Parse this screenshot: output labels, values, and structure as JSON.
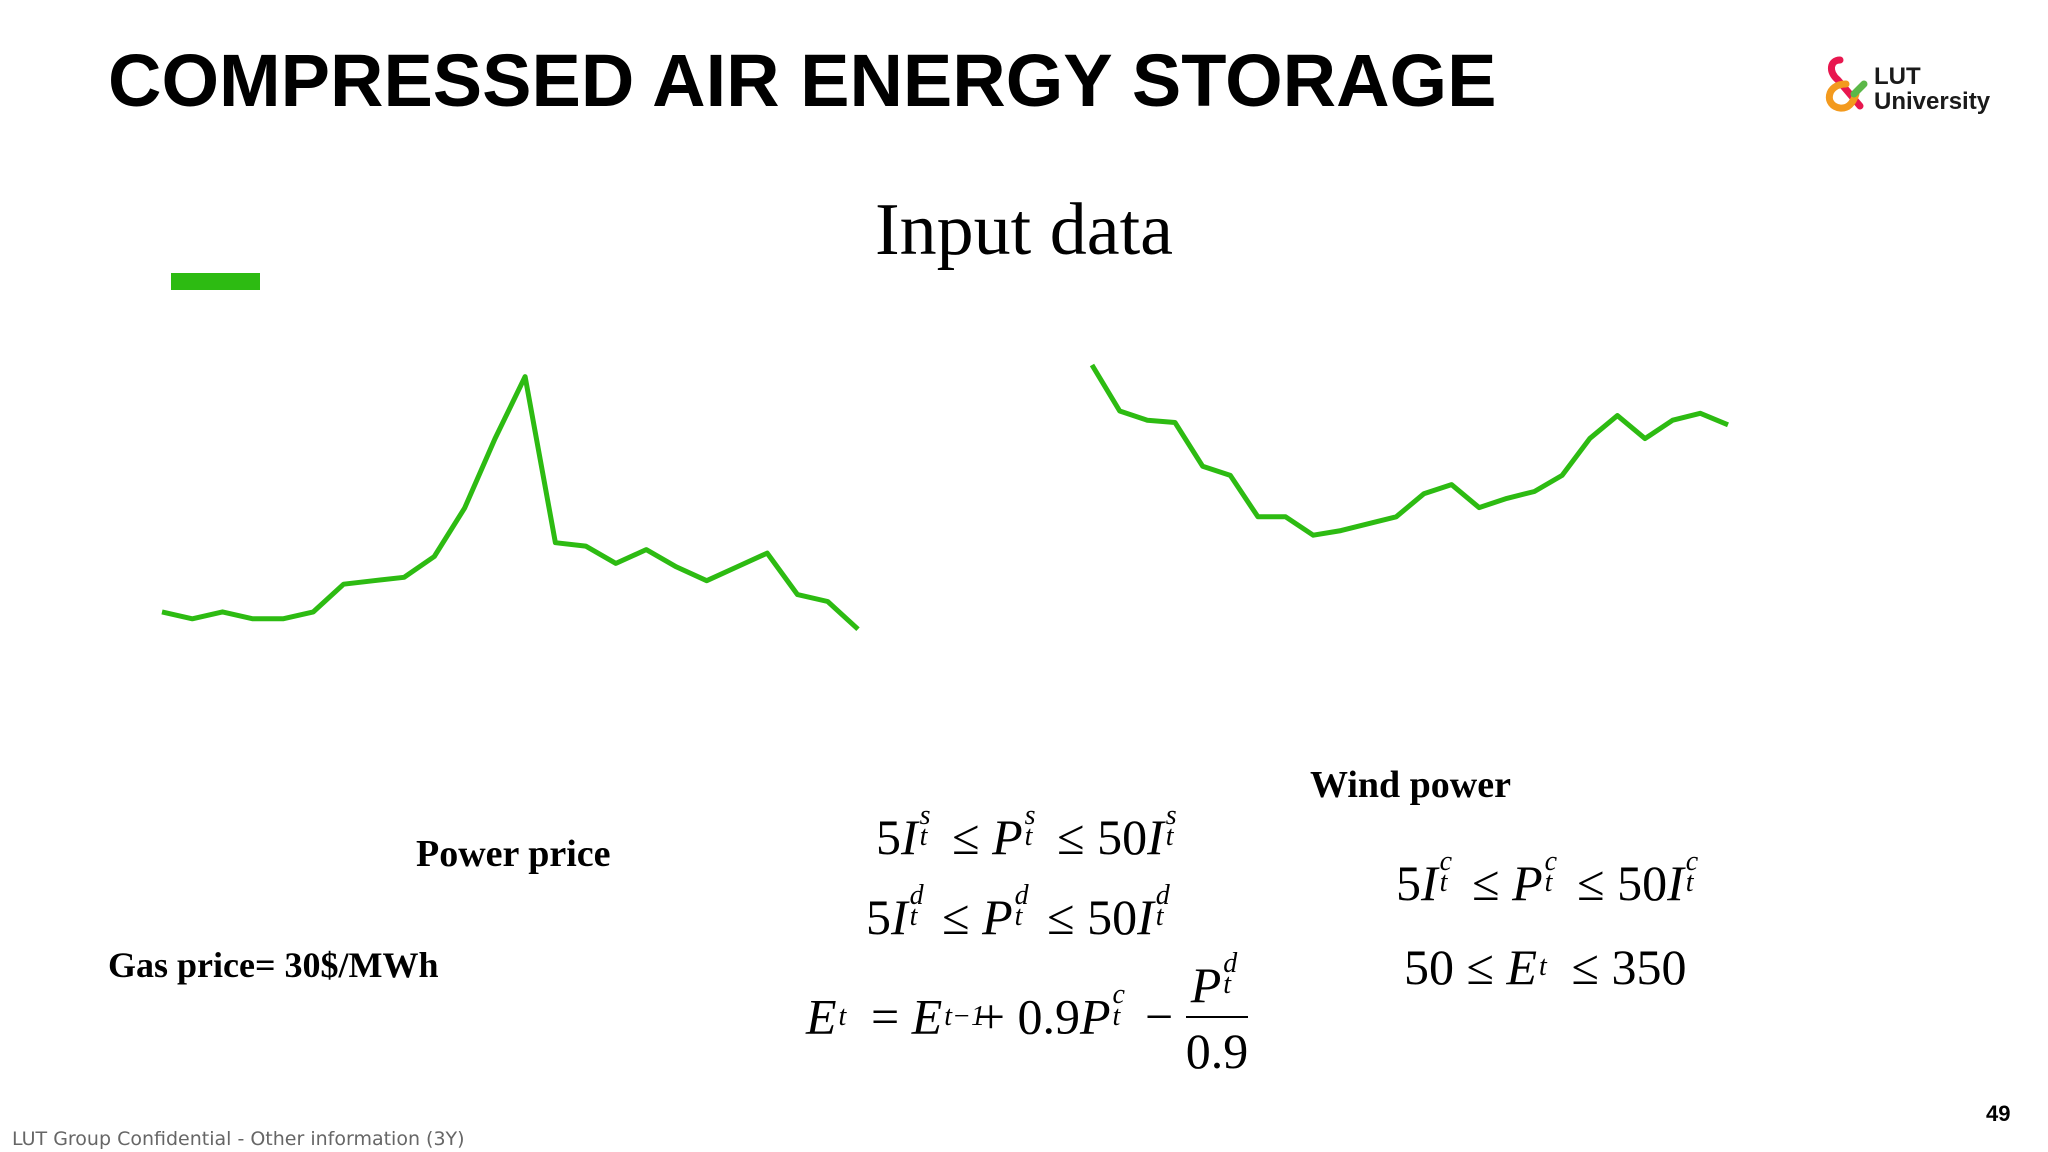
{
  "slide": {
    "title": "COMPRESSED AIR ENERGY STORAGE",
    "subtitle": "Input data",
    "page_number": "49",
    "footer": "LUT Group Confidential - Other information (3Y)",
    "logo": {
      "line1": "LUT",
      "line2": "University"
    },
    "accent_color": "#2dbb12"
  },
  "labels": {
    "power_price": "Power price",
    "wind_power": "Wind power",
    "gas_price": "Gas price= 30$/MWh"
  },
  "equations": {
    "eq1": "5I_t^s ≤ P_t^s ≤ 50I_t^s",
    "eq2": "5I_t^d ≤ P_t^d ≤ 50I_t^d",
    "eq3": "E_t = E_{t−1} + 0.9P_t^c − P_t^d / 0.9",
    "eq4": "5I_t^c ≤ P_t^c ≤ 50I_t^c",
    "eq5": "50 ≤ E_t ≤ 350"
  },
  "chart_data": [
    {
      "type": "line",
      "color": "#2dbb12",
      "x": [
        1,
        2,
        3,
        4,
        5,
        6,
        7,
        8,
        9,
        10,
        11,
        12,
        13,
        14,
        15,
        16,
        17,
        18,
        19,
        20,
        21,
        22,
        23,
        24
      ],
      "values": [
        11,
        10,
        11,
        10,
        10,
        11,
        15,
        15.5,
        16,
        19,
        26,
        36,
        45,
        21,
        20.5,
        18,
        20,
        17.5,
        15.5,
        17.5,
        19.5,
        13.5,
        12.5,
        8.5
      ],
      "ylim": [
        0,
        50
      ]
    },
    {
      "type": "line",
      "color": "#2dbb12",
      "x": [
        1,
        2,
        3,
        4,
        5,
        6,
        7,
        8,
        9,
        10,
        11,
        12,
        13,
        14,
        15,
        16,
        17,
        18,
        19,
        20,
        21,
        22,
        23,
        24
      ],
      "values": [
        95,
        85,
        83,
        82.5,
        73,
        71,
        62,
        62,
        58,
        59,
        60.5,
        62,
        67,
        69,
        64,
        66,
        67.5,
        71,
        79,
        84,
        79,
        83,
        84.5,
        82
      ],
      "ylim": [
        40,
        100
      ]
    }
  ]
}
